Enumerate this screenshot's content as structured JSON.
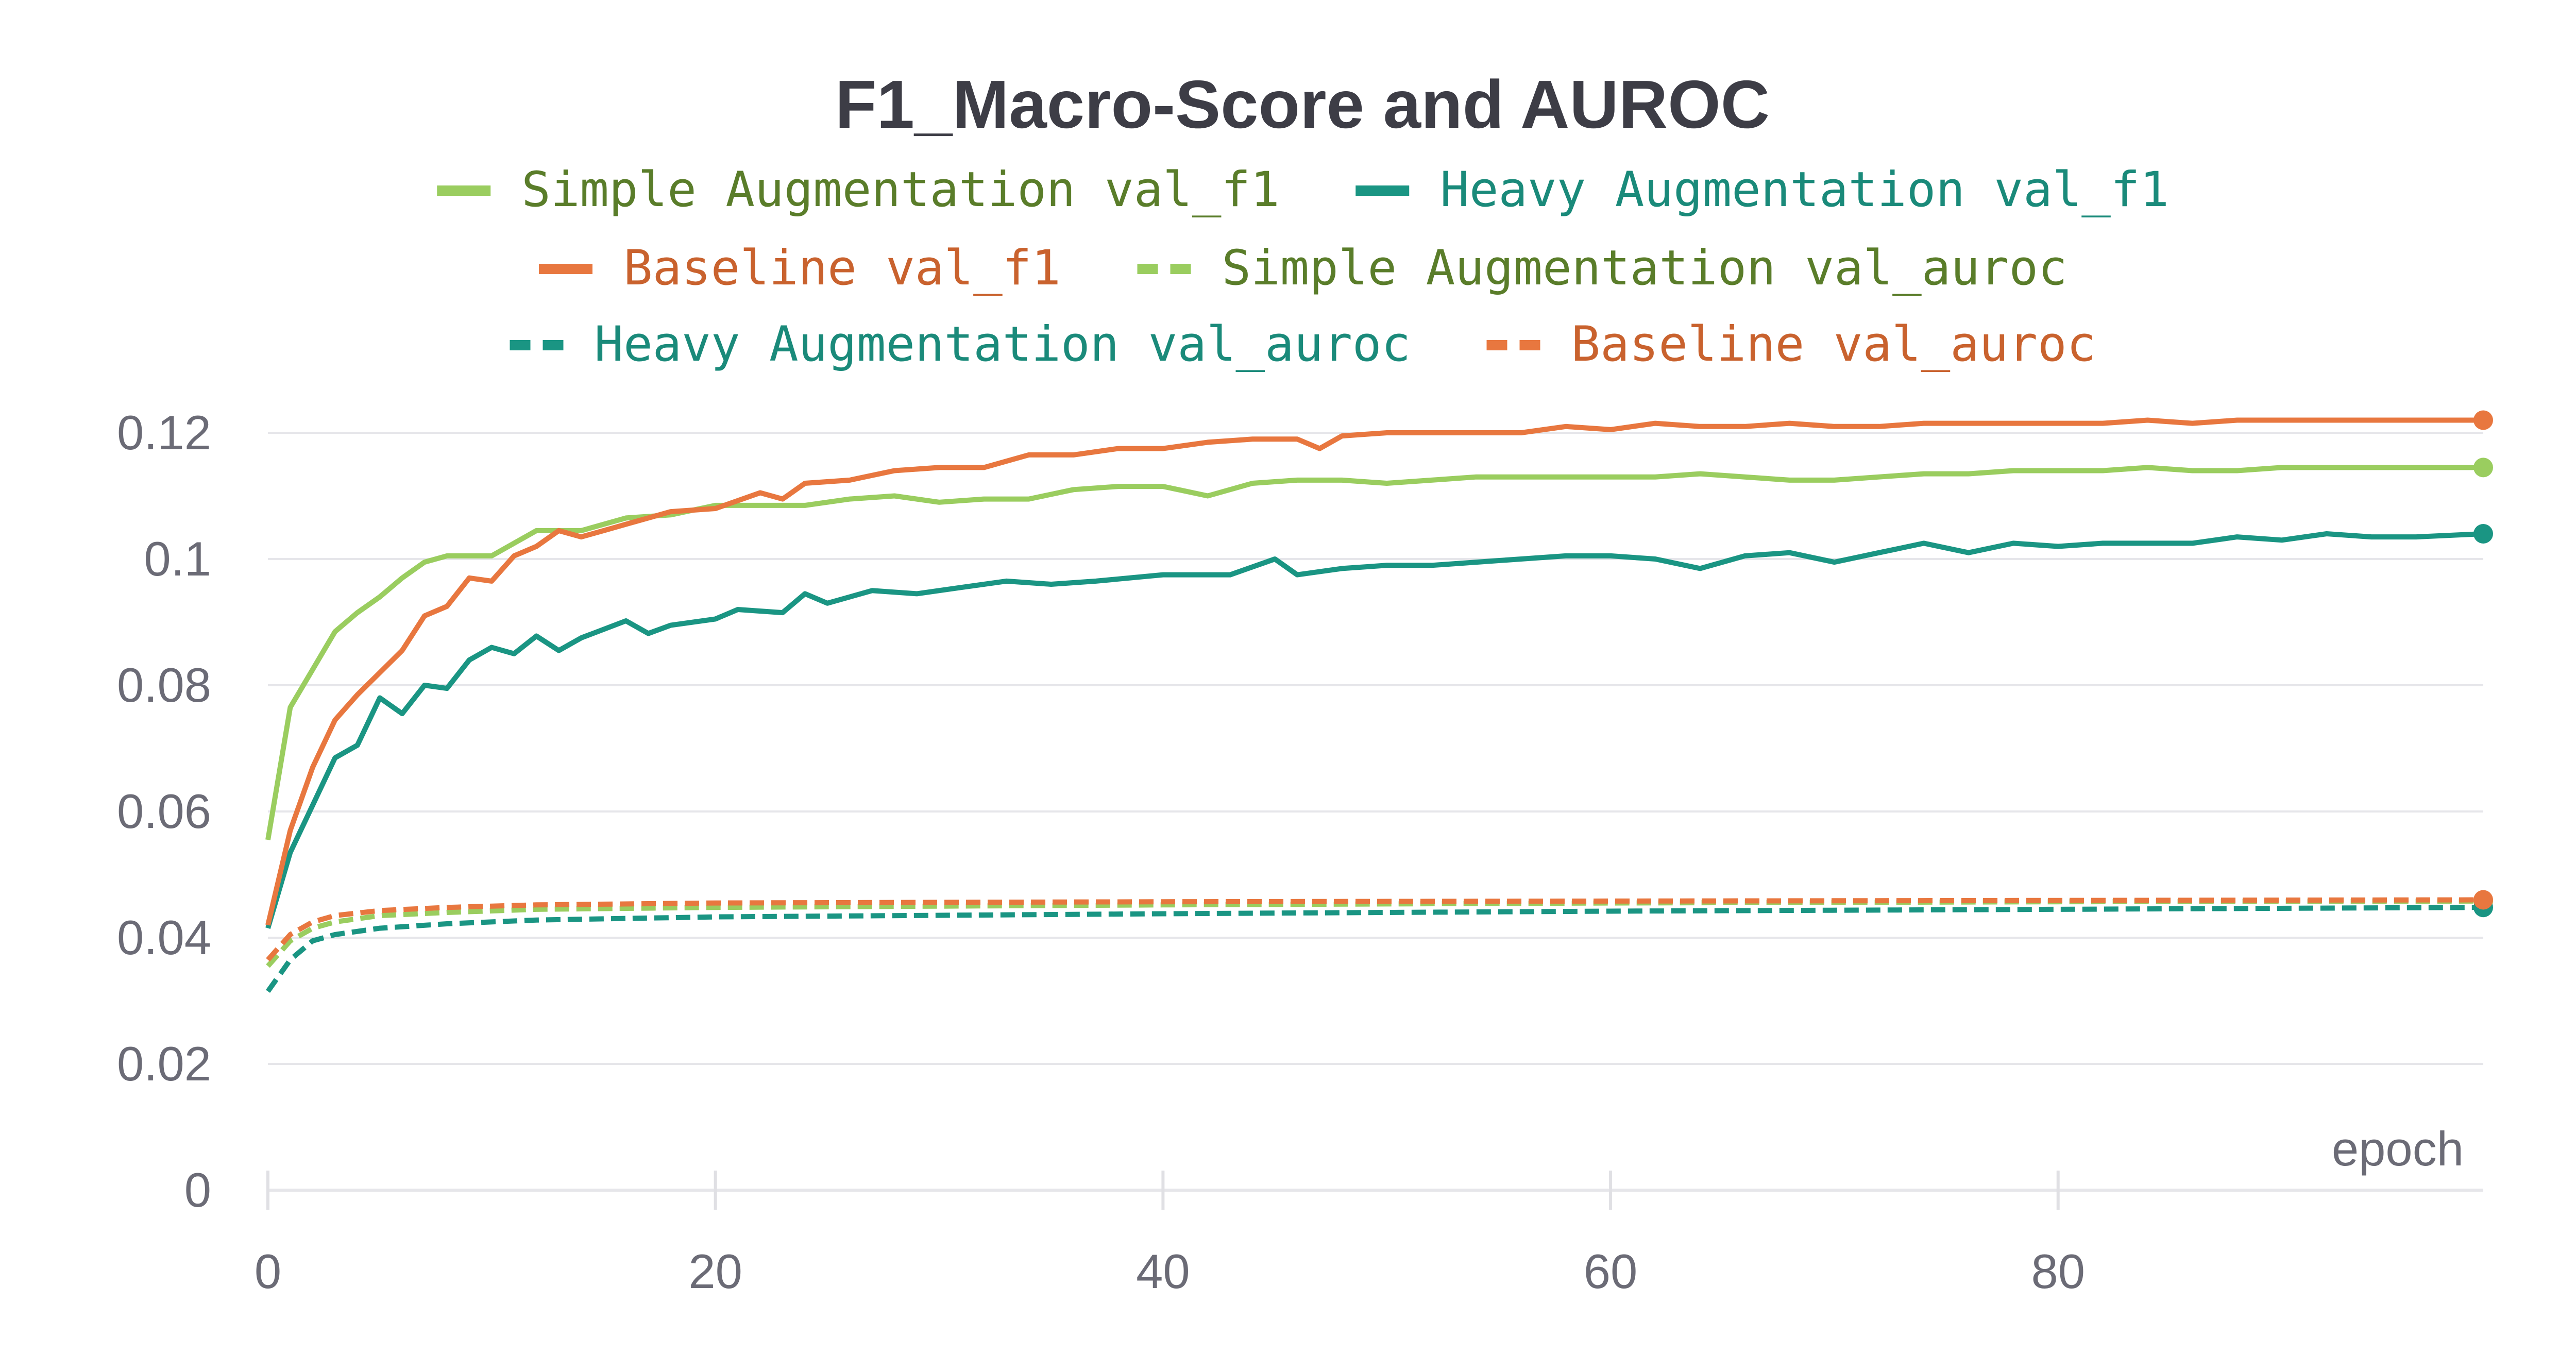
{
  "chart_data": {
    "type": "line",
    "title": "F1_Macro-Score and AUROC",
    "xlabel": "epoch",
    "ylabel": "",
    "xlim": [
      0,
      99
    ],
    "ylim": [
      0,
      0.12
    ],
    "x_ticks": [
      0,
      20,
      40,
      60,
      80
    ],
    "x_tick_labels": [
      "0",
      "20",
      "40",
      "60",
      "80"
    ],
    "y_ticks": [
      0,
      0.02,
      0.04,
      0.06,
      0.08,
      0.1,
      0.12
    ],
    "y_tick_labels": [
      "0",
      "0.02",
      "0.04",
      "0.06",
      "0.08",
      "0.1",
      "0.12"
    ],
    "grid": true,
    "legend_position": "top",
    "series": [
      {
        "name": "Simple Augmentation val_f1",
        "color": "#9acd5f",
        "text_color": "#5a7d2a",
        "dash": "solid",
        "points": [
          [
            0,
            0.0555
          ],
          [
            1,
            0.0765
          ],
          [
            2,
            0.0825
          ],
          [
            3,
            0.0885
          ],
          [
            4,
            0.0915
          ],
          [
            5,
            0.094
          ],
          [
            6,
            0.097
          ],
          [
            7,
            0.0995
          ],
          [
            8,
            0.1005
          ],
          [
            9,
            0.1005
          ],
          [
            10,
            0.1005
          ],
          [
            12,
            0.1045
          ],
          [
            14,
            0.1045
          ],
          [
            16,
            0.1065
          ],
          [
            18,
            0.107
          ],
          [
            20,
            0.1085
          ],
          [
            22,
            0.1085
          ],
          [
            24,
            0.1085
          ],
          [
            26,
            0.1095
          ],
          [
            28,
            0.11
          ],
          [
            30,
            0.109
          ],
          [
            32,
            0.1095
          ],
          [
            34,
            0.1095
          ],
          [
            36,
            0.111
          ],
          [
            38,
            0.1115
          ],
          [
            40,
            0.1115
          ],
          [
            42,
            0.11
          ],
          [
            44,
            0.112
          ],
          [
            46,
            0.1125
          ],
          [
            48,
            0.1125
          ],
          [
            50,
            0.112
          ],
          [
            52,
            0.1125
          ],
          [
            54,
            0.113
          ],
          [
            56,
            0.113
          ],
          [
            58,
            0.113
          ],
          [
            60,
            0.113
          ],
          [
            62,
            0.113
          ],
          [
            64,
            0.1135
          ],
          [
            66,
            0.113
          ],
          [
            68,
            0.1125
          ],
          [
            70,
            0.1125
          ],
          [
            72,
            0.113
          ],
          [
            74,
            0.1135
          ],
          [
            76,
            0.1135
          ],
          [
            78,
            0.114
          ],
          [
            80,
            0.114
          ],
          [
            82,
            0.114
          ],
          [
            84,
            0.1145
          ],
          [
            86,
            0.114
          ],
          [
            88,
            0.114
          ],
          [
            90,
            0.1145
          ],
          [
            92,
            0.1145
          ],
          [
            94,
            0.1145
          ],
          [
            96,
            0.1145
          ],
          [
            99,
            0.1145
          ]
        ]
      },
      {
        "name": "Heavy Augmentation val_f1",
        "color": "#1a9583",
        "text_color": "#1a8a7a",
        "dash": "solid",
        "points": [
          [
            0,
            0.0415
          ],
          [
            1,
            0.0535
          ],
          [
            2,
            0.061
          ],
          [
            3,
            0.0685
          ],
          [
            4,
            0.0705
          ],
          [
            5,
            0.078
          ],
          [
            6,
            0.0755
          ],
          [
            7,
            0.08
          ],
          [
            8,
            0.0795
          ],
          [
            9,
            0.084
          ],
          [
            10,
            0.086
          ],
          [
            11,
            0.085
          ],
          [
            12,
            0.0878
          ],
          [
            13,
            0.0855
          ],
          [
            14,
            0.0875
          ],
          [
            16,
            0.0902
          ],
          [
            17,
            0.0882
          ],
          [
            18,
            0.0895
          ],
          [
            20,
            0.0905
          ],
          [
            21,
            0.092
          ],
          [
            23,
            0.0915
          ],
          [
            24,
            0.0945
          ],
          [
            25,
            0.093
          ],
          [
            27,
            0.095
          ],
          [
            29,
            0.0945
          ],
          [
            31,
            0.0955
          ],
          [
            33,
            0.0965
          ],
          [
            35,
            0.096
          ],
          [
            37,
            0.0965
          ],
          [
            40,
            0.0975
          ],
          [
            43,
            0.0975
          ],
          [
            45,
            0.1
          ],
          [
            46,
            0.0975
          ],
          [
            48,
            0.0985
          ],
          [
            50,
            0.099
          ],
          [
            52,
            0.099
          ],
          [
            54,
            0.0995
          ],
          [
            56,
            0.1
          ],
          [
            58,
            0.1005
          ],
          [
            60,
            0.1005
          ],
          [
            62,
            0.1
          ],
          [
            64,
            0.0985
          ],
          [
            66,
            0.1005
          ],
          [
            68,
            0.101
          ],
          [
            70,
            0.0995
          ],
          [
            72,
            0.101
          ],
          [
            74,
            0.1025
          ],
          [
            76,
            0.101
          ],
          [
            78,
            0.1025
          ],
          [
            80,
            0.102
          ],
          [
            82,
            0.1025
          ],
          [
            84,
            0.1025
          ],
          [
            86,
            0.1025
          ],
          [
            88,
            0.1035
          ],
          [
            90,
            0.103
          ],
          [
            92,
            0.104
          ],
          [
            94,
            0.1035
          ],
          [
            96,
            0.1035
          ],
          [
            99,
            0.104
          ]
        ]
      },
      {
        "name": "Baseline val_f1",
        "color": "#e8773f",
        "text_color": "#c9622e",
        "dash": "solid",
        "points": [
          [
            0,
            0.042
          ],
          [
            1,
            0.057
          ],
          [
            2,
            0.067
          ],
          [
            3,
            0.0745
          ],
          [
            4,
            0.0785
          ],
          [
            5,
            0.082
          ],
          [
            6,
            0.0855
          ],
          [
            7,
            0.091
          ],
          [
            8,
            0.0925
          ],
          [
            9,
            0.097
          ],
          [
            10,
            0.0965
          ],
          [
            11,
            0.1005
          ],
          [
            12,
            0.102
          ],
          [
            13,
            0.1045
          ],
          [
            14,
            0.1035
          ],
          [
            15,
            0.1045
          ],
          [
            16,
            0.1055
          ],
          [
            18,
            0.1075
          ],
          [
            20,
            0.108
          ],
          [
            22,
            0.1105
          ],
          [
            23,
            0.1095
          ],
          [
            24,
            0.112
          ],
          [
            26,
            0.1125
          ],
          [
            28,
            0.114
          ],
          [
            30,
            0.1145
          ],
          [
            32,
            0.1145
          ],
          [
            34,
            0.1165
          ],
          [
            36,
            0.1165
          ],
          [
            38,
            0.1175
          ],
          [
            40,
            0.1175
          ],
          [
            42,
            0.1185
          ],
          [
            44,
            0.119
          ],
          [
            46,
            0.119
          ],
          [
            47,
            0.1175
          ],
          [
            48,
            0.1195
          ],
          [
            50,
            0.12
          ],
          [
            52,
            0.12
          ],
          [
            54,
            0.12
          ],
          [
            56,
            0.12
          ],
          [
            58,
            0.121
          ],
          [
            60,
            0.1205
          ],
          [
            62,
            0.1215
          ],
          [
            64,
            0.121
          ],
          [
            66,
            0.121
          ],
          [
            68,
            0.1215
          ],
          [
            70,
            0.121
          ],
          [
            72,
            0.121
          ],
          [
            74,
            0.1215
          ],
          [
            76,
            0.1215
          ],
          [
            78,
            0.1215
          ],
          [
            80,
            0.1215
          ],
          [
            82,
            0.1215
          ],
          [
            84,
            0.122
          ],
          [
            86,
            0.1215
          ],
          [
            88,
            0.122
          ],
          [
            90,
            0.122
          ],
          [
            92,
            0.122
          ],
          [
            94,
            0.122
          ],
          [
            96,
            0.122
          ],
          [
            99,
            0.122
          ]
        ]
      },
      {
        "name": "Simple Augmentation val_auroc",
        "color": "#9acd5f",
        "text_color": "#5a7d2a",
        "dash": "dashed",
        "points": [
          [
            0,
            0.0355
          ],
          [
            1,
            0.0395
          ],
          [
            2,
            0.0415
          ],
          [
            3,
            0.0425
          ],
          [
            5,
            0.0435
          ],
          [
            8,
            0.044
          ],
          [
            12,
            0.0445
          ],
          [
            20,
            0.0448
          ],
          [
            40,
            0.0452
          ],
          [
            60,
            0.0455
          ],
          [
            80,
            0.0457
          ],
          [
            99,
            0.0458
          ]
        ]
      },
      {
        "name": "Heavy Augmentation val_auroc",
        "color": "#1a9583",
        "text_color": "#1a8a7a",
        "dash": "dashed",
        "points": [
          [
            0,
            0.0315
          ],
          [
            1,
            0.0365
          ],
          [
            2,
            0.0395
          ],
          [
            3,
            0.0405
          ],
          [
            5,
            0.0415
          ],
          [
            8,
            0.0422
          ],
          [
            12,
            0.0428
          ],
          [
            20,
            0.0433
          ],
          [
            40,
            0.0438
          ],
          [
            60,
            0.0442
          ],
          [
            80,
            0.0445
          ],
          [
            99,
            0.0448
          ]
        ]
      },
      {
        "name": "Baseline val_auroc",
        "color": "#e8773f",
        "text_color": "#c9622e",
        "dash": "dashed",
        "points": [
          [
            0,
            0.0365
          ],
          [
            1,
            0.0405
          ],
          [
            2,
            0.0425
          ],
          [
            3,
            0.0435
          ],
          [
            5,
            0.0443
          ],
          [
            8,
            0.0448
          ],
          [
            12,
            0.0452
          ],
          [
            20,
            0.0455
          ],
          [
            40,
            0.0457
          ],
          [
            60,
            0.0458
          ],
          [
            80,
            0.0459
          ],
          [
            99,
            0.046
          ]
        ]
      }
    ]
  }
}
